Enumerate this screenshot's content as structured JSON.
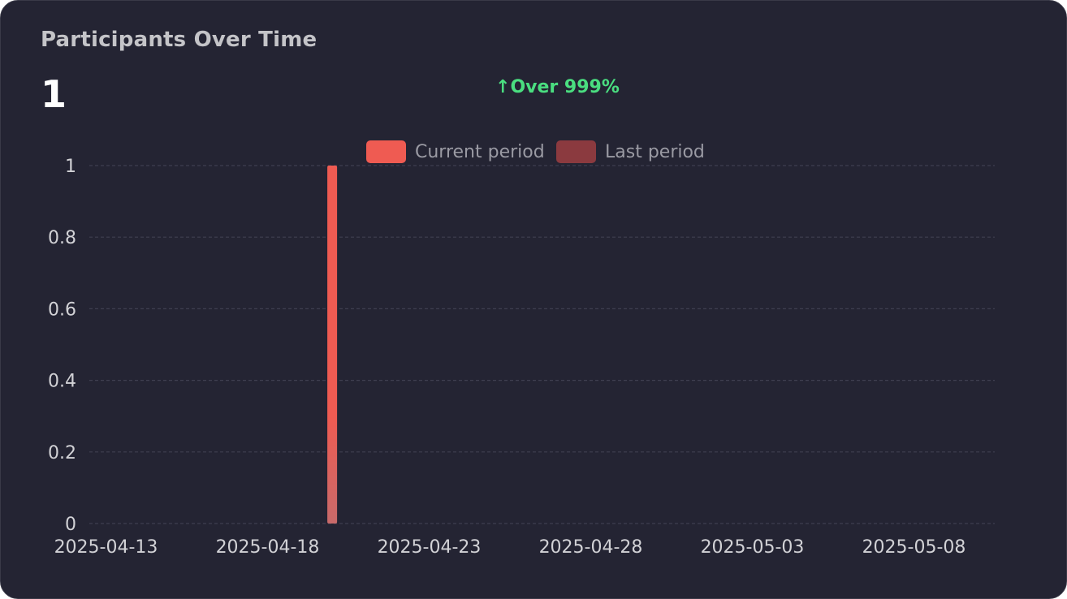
{
  "card": {
    "title": "Participants Over Time",
    "total_value": "1",
    "change_arrow": "↑",
    "change_text": "Over 999%"
  },
  "colors": {
    "background": "#242433",
    "current_period": "#ef5b52",
    "last_period": "#8b3a3f",
    "change_positive": "#4ade80",
    "grid": "#3f3f50"
  },
  "chart_data": {
    "type": "bar",
    "title": "Participants Over Time",
    "xlabel": "",
    "ylabel": "",
    "x_axis_type": "date",
    "x_range": [
      "2025-04-13",
      "2025-05-12"
    ],
    "ylim": [
      0,
      1
    ],
    "grid": true,
    "grid_style": "dashed-horizontal",
    "legend_placement": "top-center",
    "y_ticks": [
      {
        "value": 0,
        "label": "0"
      },
      {
        "value": 0.2,
        "label": "0.2"
      },
      {
        "value": 0.4,
        "label": "0.4"
      },
      {
        "value": 0.6,
        "label": "0.6"
      },
      {
        "value": 0.8,
        "label": "0.8"
      },
      {
        "value": 1,
        "label": "1"
      }
    ],
    "x_ticks": [
      "2025-04-13",
      "2025-04-18",
      "2025-04-23",
      "2025-04-28",
      "2025-05-03",
      "2025-05-08"
    ],
    "series": [
      {
        "name": "Current period",
        "color": "#ef5b52",
        "points": [
          {
            "x": "2025-04-20",
            "y": 1
          }
        ]
      },
      {
        "name": "Last period",
        "color": "#8b3a3f",
        "points": []
      }
    ]
  }
}
